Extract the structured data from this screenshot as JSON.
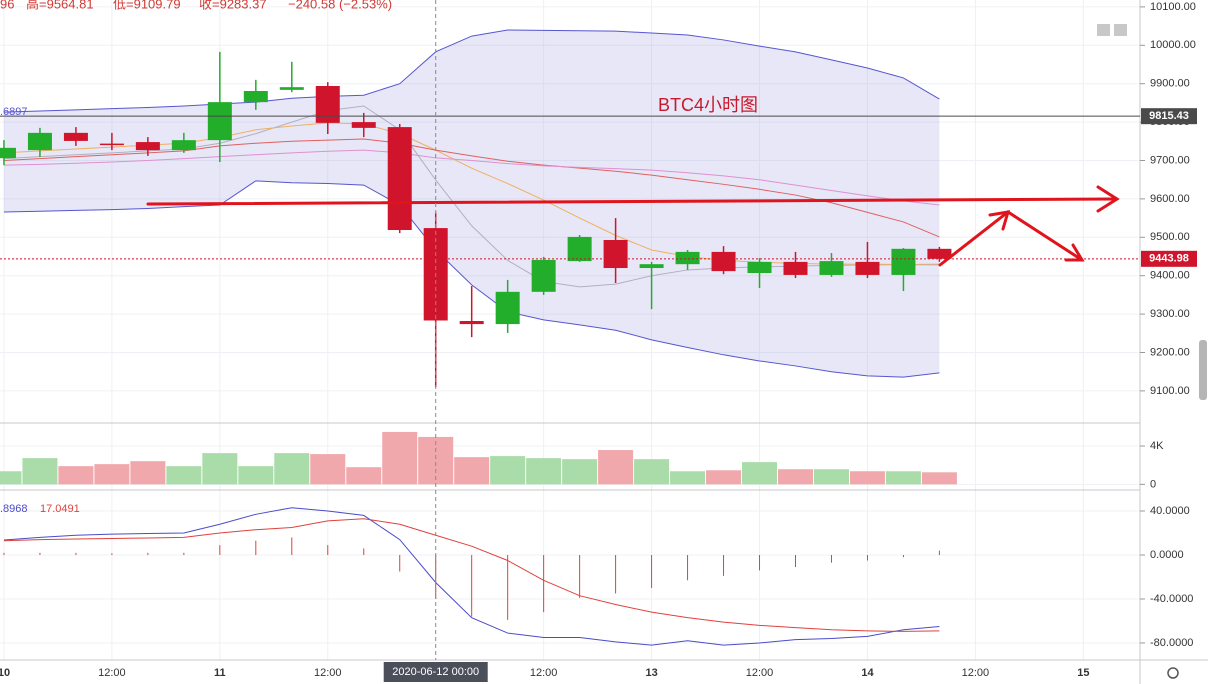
{
  "header": {
    "items": [
      "96",
      "高=9564.81",
      "低=9109.79",
      "收=9283.37",
      "−240.58 (−2.53%)"
    ]
  },
  "chart_data": [
    {
      "type": "candlestick",
      "annotation": "BTC4小时图",
      "left_label": ".6897",
      "x": [
        0,
        4,
        8,
        12,
        16,
        20,
        24,
        28,
        32,
        36,
        40,
        44,
        48,
        52,
        56,
        60,
        64,
        68,
        72,
        76,
        80,
        84,
        88,
        92,
        96,
        100,
        104
      ],
      "xlim": [
        -0.44,
        126.3
      ],
      "xticks": [
        {
          "value": 0,
          "label": "10"
        },
        {
          "value": 12,
          "label": "12:00"
        },
        {
          "value": 24,
          "label": "11"
        },
        {
          "value": 36,
          "label": "12:00"
        },
        {
          "value": 60,
          "label": "12:00"
        },
        {
          "value": 72,
          "label": "13"
        },
        {
          "value": 84,
          "label": "12:00"
        },
        {
          "value": 96,
          "label": "14"
        },
        {
          "value": 108,
          "label": "12:00"
        },
        {
          "value": 120,
          "label": "15"
        }
      ],
      "crosshair": {
        "x": 48,
        "label": "2020-06-12 00:00"
      },
      "open": [
        9706,
        9727,
        9772,
        9744,
        9748,
        9727,
        9753,
        9852,
        9884,
        9894,
        9800,
        9787,
        9524,
        9282,
        9274,
        9358,
        9438,
        9493,
        9420,
        9430,
        9462,
        9407,
        9436,
        9402,
        9436,
        9402,
        9470
      ],
      "high": [
        9753,
        9785,
        9787,
        9772,
        9761,
        9772,
        9983,
        9910,
        9957,
        9904,
        9824,
        9795,
        9564.81,
        9373,
        9389,
        9449,
        9506,
        9550,
        9436,
        9467,
        9477,
        9446,
        9462,
        9459,
        9488,
        9472,
        9475
      ],
      "low": [
        9688,
        9709,
        9738,
        9727,
        9712,
        9720,
        9696,
        9832,
        9878,
        9769,
        9761,
        9511,
        9109.79,
        9240,
        9251,
        9350,
        9436,
        9381,
        9313,
        9415,
        9404,
        9368,
        9394,
        9397,
        9394,
        9360,
        9436
      ],
      "close": [
        9733,
        9772,
        9751,
        9742,
        9727,
        9753,
        9852,
        9881,
        9891,
        9798,
        9785,
        9519,
        9283.37,
        9274,
        9358,
        9441,
        9501,
        9420,
        9430,
        9462,
        9412,
        9436,
        9402,
        9438,
        9402,
        9470,
        9443.98
      ],
      "up_color": "#22ad2b",
      "down_color": "#d0142b",
      "band": {
        "color": "#5656d0",
        "fill": "rgba(170,170,225,0.28)",
        "upper": [
          9826,
          9829,
          9832,
          9835,
          9838,
          9842,
          9847,
          9852,
          9862,
          9867,
          9870,
          9900,
          9983,
          10024,
          10040,
          10039,
          10038,
          10037,
          10032,
          10027,
          10014,
          9998,
          9983,
          9962,
          9941,
          9915,
          9860
        ],
        "lower": [
          9566,
          9568,
          9570,
          9572,
          9575,
          9580,
          9584,
          9647,
          9642,
          9640,
          9636,
          9584,
          9467,
          9376,
          9306,
          9285,
          9272,
          9258,
          9233,
          9213,
          9194,
          9178,
          9165,
          9150,
          9139,
          9136,
          9147
        ]
      },
      "overlays": [
        {
          "color": "#b0b0c0",
          "values": [
            9705,
            9710,
            9715,
            9720,
            9725,
            9730,
            9745,
            9770,
            9800,
            9830,
            9842,
            9780,
            9649,
            9530,
            9440,
            9385,
            9371,
            9378,
            9400,
            9415,
            9420,
            9423,
            9425,
            9427,
            9428,
            9429,
            9430
          ]
        },
        {
          "color": "#f0b060",
          "values": [
            9720,
            9725,
            9730,
            9735,
            9740,
            9745,
            9760,
            9780,
            9790,
            9798,
            9795,
            9770,
            9727,
            9680,
            9640,
            9597,
            9550,
            9505,
            9467,
            9450,
            9440,
            9435,
            9432,
            9430,
            9430,
            9429,
            9428
          ]
        },
        {
          "color": "#e06060",
          "values": [
            9700,
            9705,
            9710,
            9715,
            9720,
            9725,
            9738,
            9745,
            9750,
            9753,
            9756,
            9745,
            9727,
            9712,
            9698,
            9688,
            9680,
            9672,
            9662,
            9650,
            9638,
            9625,
            9610,
            9590,
            9565,
            9540,
            9501
          ]
        },
        {
          "color": "#e090d0",
          "values": [
            9688,
            9690,
            9693,
            9696,
            9700,
            9705,
            9710,
            9715,
            9720,
            9724,
            9727,
            9720,
            9707,
            9700,
            9692,
            9686,
            9682,
            9679,
            9675,
            9668,
            9660,
            9650,
            9636,
            9622,
            9608,
            9595,
            9584
          ]
        }
      ],
      "price_markers": [
        {
          "value": 9815.43,
          "color": "#4a4a4a"
        },
        {
          "value": 9443.98,
          "color": "#d0142b"
        }
      ],
      "ylim": [
        9019,
        10118
      ],
      "yticks": [
        {
          "value": 10100,
          "label": "10100.00"
        },
        {
          "value": 10000,
          "label": "10000.00"
        },
        {
          "value": 9900,
          "label": "9900.00"
        },
        {
          "value": 9800,
          "label": "9800.00"
        },
        {
          "value": 9700,
          "label": "9700.00"
        },
        {
          "value": 9600,
          "label": "9600.00"
        },
        {
          "value": 9500,
          "label": "9500.00"
        },
        {
          "value": 9400,
          "label": "9400.00"
        },
        {
          "value": 9300,
          "label": "9300.00"
        },
        {
          "value": 9200,
          "label": "9200.00"
        },
        {
          "value": 9100,
          "label": "9100.00"
        }
      ],
      "grid": true
    },
    {
      "type": "bar",
      "up_color": "#a9dca9",
      "down_color": "#f0a8ad",
      "values": [
        1370,
        2740,
        1900,
        2110,
        2420,
        1900,
        3260,
        1900,
        3260,
        3160,
        1790,
        5470,
        4950,
        2840,
        2950,
        2740,
        2630,
        3580,
        2630,
        1370,
        1470,
        2320,
        1580,
        1580,
        1370,
        1370,
        1260
      ],
      "ylim": [
        -380,
        6300
      ],
      "yticks": [
        0,
        {
          "value": 4000,
          "label": "4K"
        }
      ]
    },
    {
      "type": "macd",
      "readouts": [
        ".8968",
        "17.0491"
      ],
      "series": [
        {
          "color": "#4b4bc8",
          "values": [
            13.6,
            16,
            18,
            19,
            19.5,
            20,
            28,
            37,
            43,
            40,
            36,
            14,
            -25,
            -57,
            -71,
            -75,
            -75,
            -79,
            -82,
            -78,
            -82,
            -80,
            -77,
            -76,
            -74,
            -68,
            -65
          ]
        },
        {
          "color": "#e0413c",
          "values": [
            13,
            14,
            14.5,
            15,
            15.5,
            16,
            20,
            23,
            25,
            31,
            33,
            28,
            18,
            8,
            -5,
            -23,
            -37,
            -45,
            -52,
            -57,
            -61,
            -64,
            -66,
            -68,
            -69,
            -69.5,
            -69
          ]
        }
      ],
      "histogram": {
        "color": "#e0413c",
        "values": [
          2,
          2,
          2,
          1.5,
          2,
          2,
          9,
          13,
          16,
          9,
          6,
          -15,
          -40,
          -56,
          -59,
          -52,
          -39,
          -35,
          -30,
          -23,
          -19,
          -14,
          -11,
          -7,
          -5,
          -2,
          4
        ]
      },
      "ylim": [
        -95.5,
        57.3
      ],
      "yticks": [
        {
          "value": 40,
          "label": "40.0000"
        },
        {
          "value": 0,
          "label": "0.0000"
        },
        {
          "value": -40,
          "label": "-40.0000"
        },
        {
          "value": -80,
          "label": "-80.0000"
        }
      ]
    }
  ]
}
